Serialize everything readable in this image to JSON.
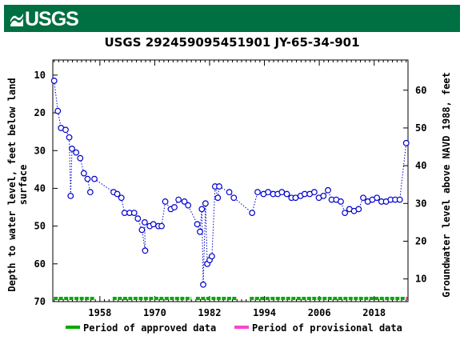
{
  "header": {
    "logo_text": "USGS",
    "logo_mark": "usgs-wave-mark"
  },
  "chart_data": {
    "type": "scatter",
    "title": "USGS 292459095451901 JY-65-34-901",
    "ylabel_left_lines": [
      "Depth to water level, feet below land",
      "surface"
    ],
    "ylabel_right": "Groundwater level above NAVD 1988, feet",
    "left_axis": {
      "range": [
        70,
        6
      ],
      "inverted": true,
      "ticks": [
        10,
        20,
        30,
        40,
        50,
        60,
        70
      ]
    },
    "right_axis": {
      "range": [
        4,
        68
      ],
      "ticks": [
        10,
        20,
        30,
        40,
        50,
        60
      ]
    },
    "x_axis": {
      "range": [
        1947.7,
        2025.4
      ],
      "ticks": [
        1958,
        1970,
        1982,
        1994,
        2006,
        2018
      ]
    },
    "series": [
      {
        "style": "dotted-line-with-circles",
        "color": "#0000cc",
        "points": [
          [
            1948.0,
            11.5
          ],
          [
            1948.8,
            19.5
          ],
          [
            1949.5,
            24.0
          ],
          [
            1950.5,
            24.5
          ],
          [
            1951.3,
            26.5
          ],
          [
            1951.6,
            42.0
          ],
          [
            1951.9,
            29.5
          ],
          [
            1952.8,
            30.5
          ],
          [
            1953.7,
            32.0
          ],
          [
            1954.5,
            36.0
          ],
          [
            1955.3,
            37.5
          ],
          [
            1955.9,
            41.0
          ],
          [
            1956.8,
            37.5
          ],
          [
            1961.0,
            41.0
          ],
          [
            1961.8,
            41.5
          ],
          [
            1962.7,
            42.5
          ],
          [
            1963.4,
            46.5
          ],
          [
            1964.5,
            46.5
          ],
          [
            1965.5,
            46.5
          ],
          [
            1966.3,
            48.0
          ],
          [
            1967.2,
            51.0
          ],
          [
            1967.9,
            56.5
          ],
          [
            1967.8,
            49.0
          ],
          [
            1968.9,
            50.0
          ],
          [
            1969.7,
            49.5
          ],
          [
            1970.8,
            50.0
          ],
          [
            1971.5,
            50.0
          ],
          [
            1972.3,
            43.5
          ],
          [
            1973.5,
            45.5
          ],
          [
            1974.3,
            45.0
          ],
          [
            1975.2,
            43.0
          ],
          [
            1976.5,
            43.5
          ],
          [
            1977.3,
            44.5
          ],
          [
            1979.3,
            49.5
          ],
          [
            1979.9,
            51.5
          ],
          [
            1980.3,
            45.5
          ],
          [
            1980.6,
            65.5
          ],
          [
            1981.1,
            44.0
          ],
          [
            1981.5,
            60.0
          ],
          [
            1982.0,
            59.0
          ],
          [
            1982.5,
            58.0
          ],
          [
            1983.2,
            39.5
          ],
          [
            1983.8,
            42.5
          ],
          [
            1984.1,
            39.5
          ],
          [
            1986.3,
            41.0
          ],
          [
            1987.3,
            42.5
          ],
          [
            1991.3,
            46.5
          ],
          [
            1992.5,
            41.0
          ],
          [
            1993.8,
            41.5
          ],
          [
            1994.8,
            41.0
          ],
          [
            1995.9,
            41.5
          ],
          [
            1996.9,
            41.5
          ],
          [
            1997.8,
            41.0
          ],
          [
            1998.9,
            41.5
          ],
          [
            1999.9,
            42.5
          ],
          [
            2000.8,
            42.5
          ],
          [
            2001.9,
            42.0
          ],
          [
            2002.8,
            41.5
          ],
          [
            2003.9,
            41.5
          ],
          [
            2004.9,
            41.0
          ],
          [
            2005.9,
            42.5
          ],
          [
            2006.9,
            42.0
          ],
          [
            2007.9,
            40.5
          ],
          [
            2008.7,
            43.0
          ],
          [
            2009.7,
            43.0
          ],
          [
            2010.7,
            43.5
          ],
          [
            2011.6,
            46.5
          ],
          [
            2012.6,
            45.5
          ],
          [
            2013.6,
            46.0
          ],
          [
            2014.6,
            45.5
          ],
          [
            2015.6,
            42.5
          ],
          [
            2016.6,
            43.5
          ],
          [
            2017.6,
            43.0
          ],
          [
            2018.6,
            42.5
          ],
          [
            2019.6,
            43.5
          ],
          [
            2020.6,
            43.5
          ],
          [
            2021.6,
            43.0
          ],
          [
            2022.6,
            43.0
          ],
          [
            2023.6,
            43.0
          ],
          [
            2025.0,
            28.0
          ]
        ],
        "gaps_before_point_index": [
          12
        ]
      }
    ],
    "approval_bar": {
      "approved_color": "#00aa00",
      "provisional_color": "#ff44cc",
      "approved_ranges": [
        [
          1947.9,
          1957.0
        ],
        [
          1960.8,
          1978.0
        ],
        [
          1979.0,
          1988.0
        ],
        [
          1990.8,
          2024.9
        ]
      ],
      "provisional_ranges": [
        [
          2024.9,
          2025.3
        ]
      ]
    },
    "legend": [
      {
        "label": "Period of approved data",
        "color": "#00aa00"
      },
      {
        "label": "Period of provisional data",
        "color": "#ff44cc"
      }
    ],
    "legend_position": "bottom",
    "grid": false
  }
}
